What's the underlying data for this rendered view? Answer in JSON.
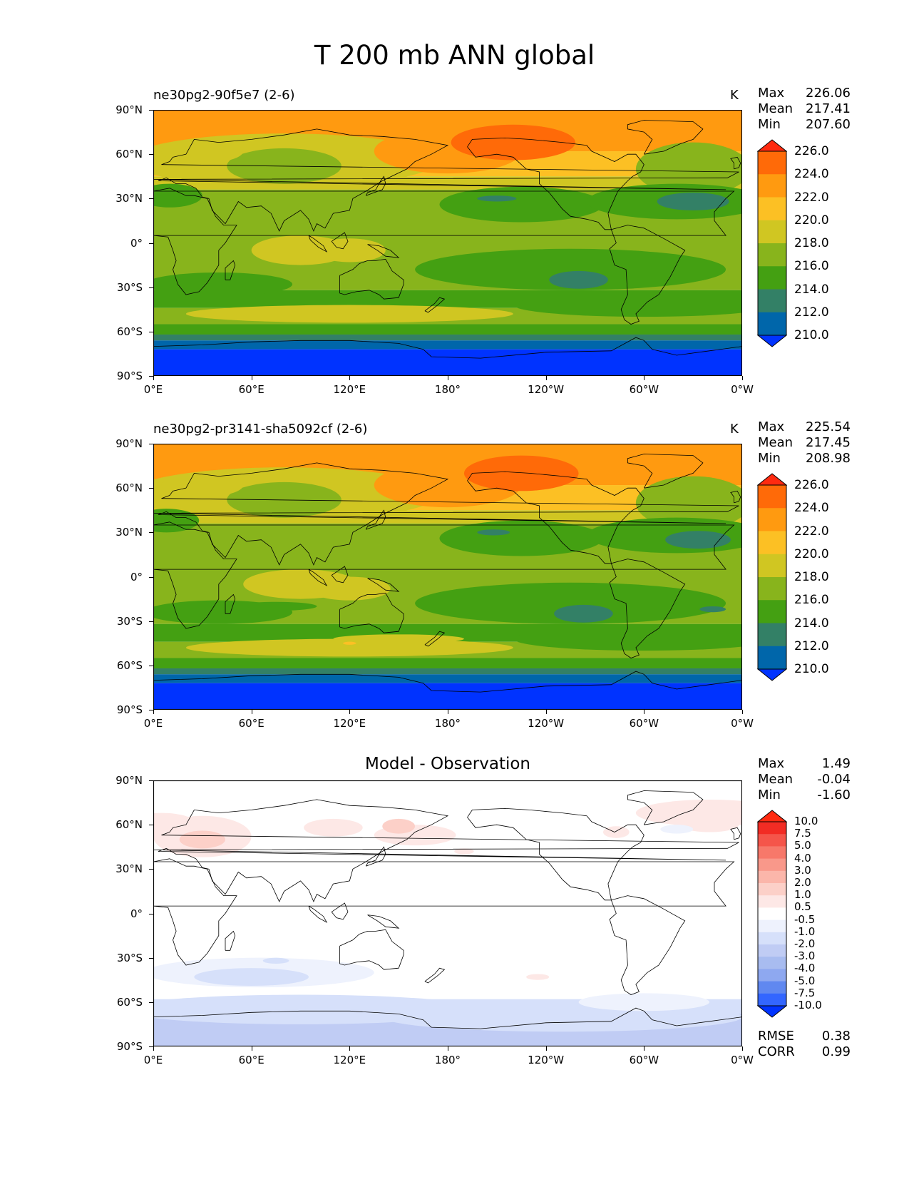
{
  "title": "T 200 mb ANN global",
  "y_ticks": [
    "90°N",
    "60°N",
    "30°N",
    "0°",
    "30°S",
    "60°S",
    "90°S"
  ],
  "x_ticks": [
    "0°E",
    "60°E",
    "120°E",
    "180°",
    "120°W",
    "60°W",
    "0°W"
  ],
  "panels": [
    {
      "name": "ne30pg2-90f5e7 (2-6)",
      "units": "K",
      "stats": {
        "max_label": "Max",
        "max": "226.06",
        "mean_label": "Mean",
        "mean": "217.41",
        "min_label": "Min",
        "min": "207.60"
      },
      "colorbar_labels": [
        "226.0",
        "224.0",
        "222.0",
        "220.0",
        "218.0",
        "216.0",
        "214.0",
        "212.0",
        "210.0"
      ]
    },
    {
      "name": "ne30pg2-pr3141-sha5092cf (2-6)",
      "units": "K",
      "stats": {
        "max_label": "Max",
        "max": "225.54",
        "mean_label": "Mean",
        "mean": "217.45",
        "min_label": "Min",
        "min": "208.98"
      },
      "colorbar_labels": [
        "226.0",
        "224.0",
        "222.0",
        "220.0",
        "218.0",
        "216.0",
        "214.0",
        "212.0",
        "210.0"
      ]
    },
    {
      "name": "Model - Observation",
      "stats": {
        "max_label": "Max",
        "max": "1.49",
        "mean_label": "Mean",
        "mean": "-0.04",
        "min_label": "Min",
        "min": "-1.60"
      },
      "colorbar_labels": [
        "10.0",
        "7.5",
        "5.0",
        "4.0",
        "3.0",
        "2.0",
        "1.0",
        "0.5",
        "-0.5",
        "-1.0",
        "-2.0",
        "-3.0",
        "-4.0",
        "-5.0",
        "-7.5",
        "-10.0"
      ],
      "rmse_label": "RMSE",
      "rmse": "0.38",
      "corr_label": "CORR",
      "corr": "0.99"
    }
  ],
  "colors": {
    "abs_scale": [
      "#0033ff",
      "#0066aa",
      "#338066",
      "#44a012",
      "#88b41c",
      "#d0c622",
      "#fcc024",
      "#ff9a10",
      "#ff6a08",
      "#ff2a10"
    ],
    "diff_scale": [
      "#0033ff",
      "#3366ff",
      "#6088f0",
      "#8ea8f0",
      "#a8bcf0",
      "#c0ccf4",
      "#d6e0fa",
      "#eef2fd",
      "#ffffff",
      "#fde8e6",
      "#fcd0c8",
      "#fbb6aa",
      "#f9988a",
      "#f7786a",
      "#f5554a",
      "#f22c24",
      "#ff2a10"
    ]
  },
  "chart_data": [
    {
      "type": "heatmap",
      "title": "ne30pg2-90f5e7 (2-6)",
      "variable": "T 200 mb ANN global",
      "units": "K",
      "x_range": [
        0,
        360
      ],
      "y_range": [
        -90,
        90
      ],
      "levels": [
        210,
        212,
        214,
        216,
        218,
        220,
        222,
        224,
        226
      ],
      "max": 226.06,
      "mean": 217.41,
      "min": 207.6
    },
    {
      "type": "heatmap",
      "title": "ne30pg2-pr3141-sha5092cf (2-6)",
      "variable": "T 200 mb ANN global",
      "units": "K",
      "x_range": [
        0,
        360
      ],
      "y_range": [
        -90,
        90
      ],
      "levels": [
        210,
        212,
        214,
        216,
        218,
        220,
        222,
        224,
        226
      ],
      "max": 225.54,
      "mean": 217.45,
      "min": 208.98
    },
    {
      "type": "heatmap",
      "title": "Model - Observation",
      "x_range": [
        0,
        360
      ],
      "y_range": [
        -90,
        90
      ],
      "levels": [
        -10.0,
        -7.5,
        -5.0,
        -4.0,
        -3.0,
        -2.0,
        -1.0,
        -0.5,
        0.5,
        1.0,
        2.0,
        3.0,
        4.0,
        5.0,
        7.5,
        10.0
      ],
      "max": 1.49,
      "mean": -0.04,
      "min": -1.6,
      "rmse": 0.38,
      "corr": 0.99
    }
  ]
}
